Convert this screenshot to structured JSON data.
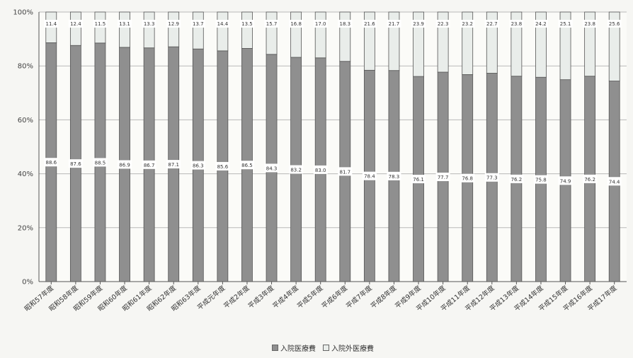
{
  "chart_data": {
    "type": "bar",
    "stacked": true,
    "categories": [
      "昭和57年度",
      "昭和58年度",
      "昭和59年度",
      "昭和60年度",
      "昭和61年度",
      "昭和62年度",
      "昭和63年度",
      "平成元年度",
      "平成2年度",
      "平成3年度",
      "平成4年度",
      "平成5年度",
      "平成6年度",
      "平成7年度",
      "平成8年度",
      "平成9年度",
      "平成10年度",
      "平成11年度",
      "平成12年度",
      "平成13年度",
      "平成14年度",
      "平成15年度",
      "平成16年度",
      "平成17年度"
    ],
    "series": [
      {
        "name": "入院医療費",
        "color": "#8f8f8f",
        "values": [
          88.6,
          87.6,
          88.5,
          86.9,
          86.7,
          87.1,
          86.3,
          85.6,
          86.5,
          84.3,
          83.2,
          83.0,
          81.7,
          78.4,
          78.3,
          76.1,
          77.7,
          76.8,
          77.3,
          76.2,
          75.8,
          74.9,
          76.2,
          74.4
        ],
        "labels": [
          "88.6",
          "87.6",
          "88.5",
          "86.9",
          "86.7",
          "87.1",
          "86.3",
          "85.6",
          "86.5",
          "84.3",
          "83.2",
          "83.0",
          "81.7",
          "78.4",
          "78.3",
          "76.1",
          "77.7",
          "76.8",
          "77.3",
          "76.2",
          "75.8",
          "74.9",
          "76.2",
          "74.4"
        ]
      },
      {
        "name": "入院外医療費",
        "color": "#e9edea",
        "values": [
          11.4,
          12.4,
          11.5,
          13.1,
          13.3,
          12.9,
          13.7,
          14.4,
          13.5,
          15.7,
          16.8,
          17.0,
          18.3,
          21.6,
          21.7,
          23.9,
          22.3,
          23.2,
          22.7,
          23.8,
          24.2,
          25.1,
          23.8,
          25.6
        ],
        "labels": [
          "11.4",
          "12.4",
          "11.5",
          "13.1",
          "13.3",
          "12.9",
          "13.7",
          "14.4",
          "13.5",
          "15.7",
          "16.8",
          "17.0",
          "18.3",
          "21.6",
          "21.7",
          "23.9",
          "22.3",
          "23.2",
          "22.7",
          "23.8",
          "24.2",
          "25.1",
          "23.8",
          "25.6"
        ]
      }
    ],
    "ylim": [
      0,
      100
    ],
    "yticks": [
      "0%",
      "20%",
      "40%",
      "60%",
      "80%",
      "100%"
    ],
    "grid": true,
    "legend": "bottom-center"
  },
  "legend": {
    "items": [
      {
        "label": "入院医療費",
        "color": "#8f8f8f"
      },
      {
        "label": "入院外医療費",
        "color": "#e9edea"
      }
    ]
  }
}
